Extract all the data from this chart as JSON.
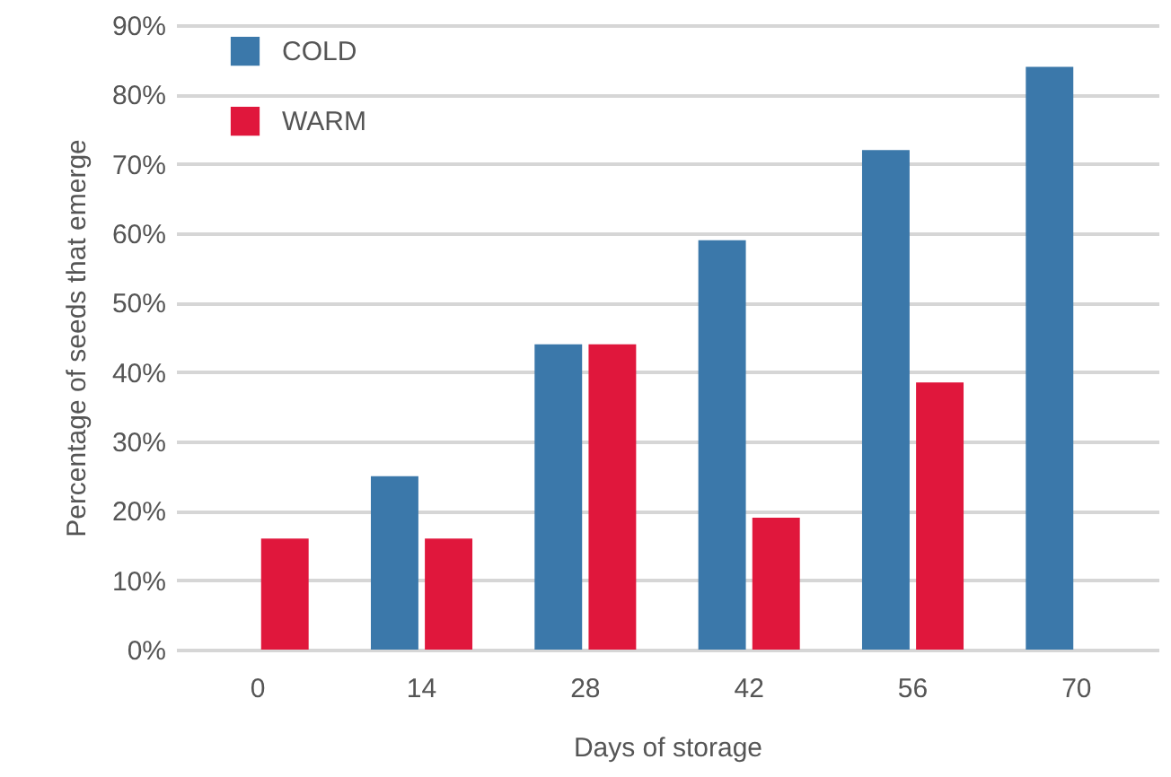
{
  "chart_data": {
    "type": "bar",
    "xlabel": "Days of storage",
    "ylabel": "Percentage of seeds that emerge",
    "categories": [
      "0",
      "14",
      "28",
      "42",
      "56",
      "70"
    ],
    "series": [
      {
        "name": "COLD",
        "color": "#3b78aa",
        "values": [
          null,
          25,
          44,
          59,
          72,
          84
        ]
      },
      {
        "name": "WARM",
        "color": "#e0173c",
        "values": [
          16,
          16,
          44,
          19,
          38.5,
          null
        ]
      }
    ],
    "ylim": [
      0,
      90
    ],
    "yticks": [
      {
        "value": 0,
        "label": "0%"
      },
      {
        "value": 10,
        "label": "10%"
      },
      {
        "value": 20,
        "label": "20%"
      },
      {
        "value": 30,
        "label": "30%"
      },
      {
        "value": 40,
        "label": "40%"
      },
      {
        "value": 50,
        "label": "50%"
      },
      {
        "value": 60,
        "label": "60%"
      },
      {
        "value": 70,
        "label": "70%"
      },
      {
        "value": 80,
        "label": "80%"
      },
      {
        "value": 90,
        "label": "90%"
      }
    ],
    "grid": "y",
    "legend": "top left"
  }
}
